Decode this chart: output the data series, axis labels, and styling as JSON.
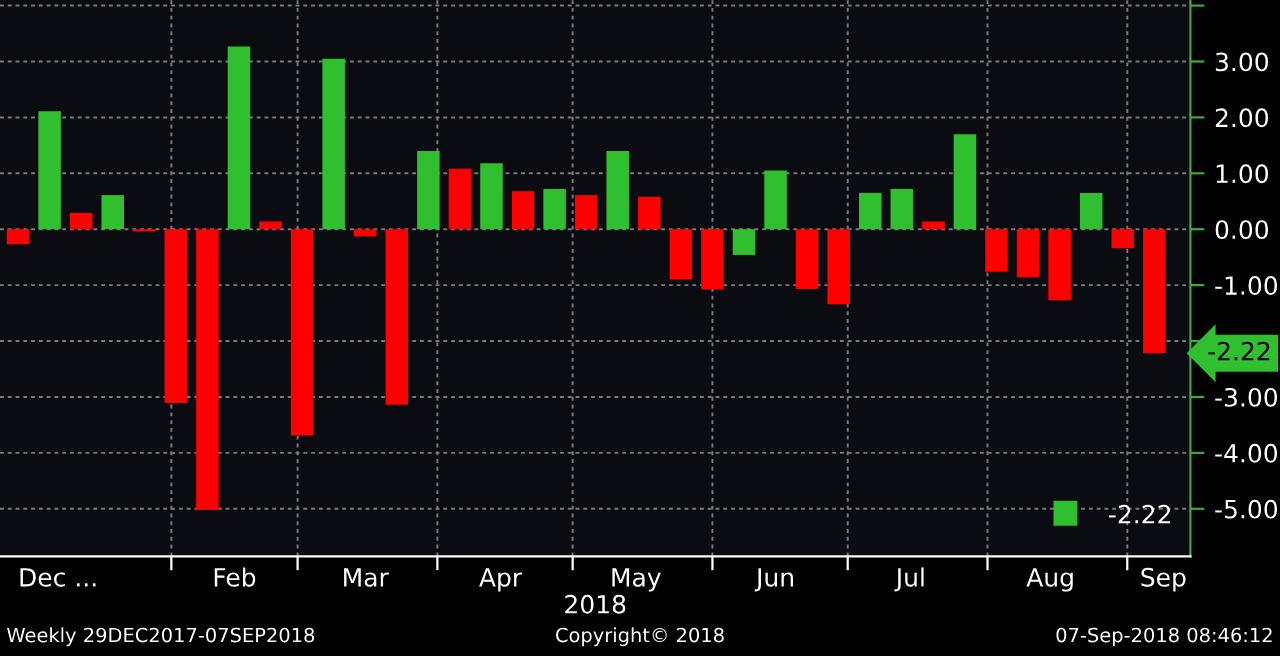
{
  "chart_data": {
    "type": "bar",
    "x": [
      "2017-12-29",
      "2018-01-05",
      "2018-01-12",
      "2018-01-19",
      "2018-01-26",
      "2018-02-02",
      "2018-02-09",
      "2018-02-16",
      "2018-02-23",
      "2018-03-02",
      "2018-03-09",
      "2018-03-16",
      "2018-03-23",
      "2018-03-30",
      "2018-04-06",
      "2018-04-13",
      "2018-04-20",
      "2018-04-27",
      "2018-05-04",
      "2018-05-11",
      "2018-05-18",
      "2018-05-25",
      "2018-06-01",
      "2018-06-08",
      "2018-06-15",
      "2018-06-22",
      "2018-06-29",
      "2018-07-06",
      "2018-07-13",
      "2018-07-20",
      "2018-07-27",
      "2018-08-03",
      "2018-08-10",
      "2018-08-17",
      "2018-08-24",
      "2018-08-31",
      "2018-09-07"
    ],
    "values": [
      -0.27,
      2.11,
      0.29,
      0.61,
      -0.04,
      -3.11,
      -5.02,
      3.27,
      0.14,
      -3.69,
      3.05,
      -0.13,
      -3.14,
      1.4,
      1.08,
      1.18,
      0.68,
      0.72,
      0.61,
      1.4,
      0.58,
      -0.9,
      -1.08,
      -0.46,
      1.05,
      -1.07,
      -1.34,
      0.65,
      0.72,
      0.14,
      1.7,
      -0.76,
      -0.86,
      -1.27,
      0.65,
      -0.34,
      -2.22
    ],
    "colors": [
      "#ff0000",
      "#2fbf2f",
      "#ff0000",
      "#2fbf2f",
      "#ff0000",
      "#ff0000",
      "#ff0000",
      "#2fbf2f",
      "#ff0000",
      "#ff0000",
      "#2fbf2f",
      "#ff0000",
      "#ff0000",
      "#2fbf2f",
      "#ff0000",
      "#2fbf2f",
      "#ff0000",
      "#2fbf2f",
      "#ff0000",
      "#2fbf2f",
      "#ff0000",
      "#ff0000",
      "#ff0000",
      "#2fbf2f",
      "#2fbf2f",
      "#ff0000",
      "#ff0000",
      "#2fbf2f",
      "#2fbf2f",
      "#ff0000",
      "#2fbf2f",
      "#ff0000",
      "#ff0000",
      "#ff0000",
      "#2fbf2f",
      "#ff0000",
      "#ff0000"
    ],
    "xlabel": "2018",
    "xlim": [
      "2017-12-25",
      "2018-09-15"
    ],
    "xticks": [
      {
        "value": "2017-12-29",
        "label": "Dec ..."
      },
      {
        "value": "2018-02-01",
        "label": null
      },
      {
        "value": "2018-02-15",
        "label": "Feb"
      },
      {
        "value": "2018-03-01",
        "label": null
      },
      {
        "value": "2018-03-16",
        "label": "Mar"
      },
      {
        "value": "2018-04-01",
        "label": null
      },
      {
        "value": "2018-04-15",
        "label": "Apr"
      },
      {
        "value": "2018-05-01",
        "label": null
      },
      {
        "value": "2018-05-15",
        "label": "May"
      },
      {
        "value": "2018-06-01",
        "label": null
      },
      {
        "value": "2018-06-15",
        "label": "Jun"
      },
      {
        "value": "2018-07-01",
        "label": null
      },
      {
        "value": "2018-07-15",
        "label": "Jul"
      },
      {
        "value": "2018-08-01",
        "label": null
      },
      {
        "value": "2018-08-15",
        "label": "Aug"
      },
      {
        "value": "2018-09-01",
        "label": null
      },
      {
        "value": "2018-09-09",
        "label": "Sep"
      }
    ],
    "ylim": [
      -5.85,
      4.1
    ],
    "yticks": [
      {
        "value": 4,
        "label": null
      },
      {
        "value": 3,
        "label": "3.00"
      },
      {
        "value": 2,
        "label": "2.00"
      },
      {
        "value": 1,
        "label": "1.00"
      },
      {
        "value": 0,
        "label": "0.00"
      },
      {
        "value": -1,
        "label": "-1.00"
      },
      {
        "value": -2,
        "label": null
      },
      {
        "value": -3,
        "label": "-3.00"
      },
      {
        "value": -4,
        "label": "-4.00"
      },
      {
        "value": -5,
        "label": "-5.00"
      }
    ],
    "grid": true,
    "annotations": [
      "-2.22",
      "-2.22",
      "Weekly 29DEC2017-07SEP2018",
      "Copyright© 2018",
      "07-Sep-2018 08:46:12"
    ]
  }
}
